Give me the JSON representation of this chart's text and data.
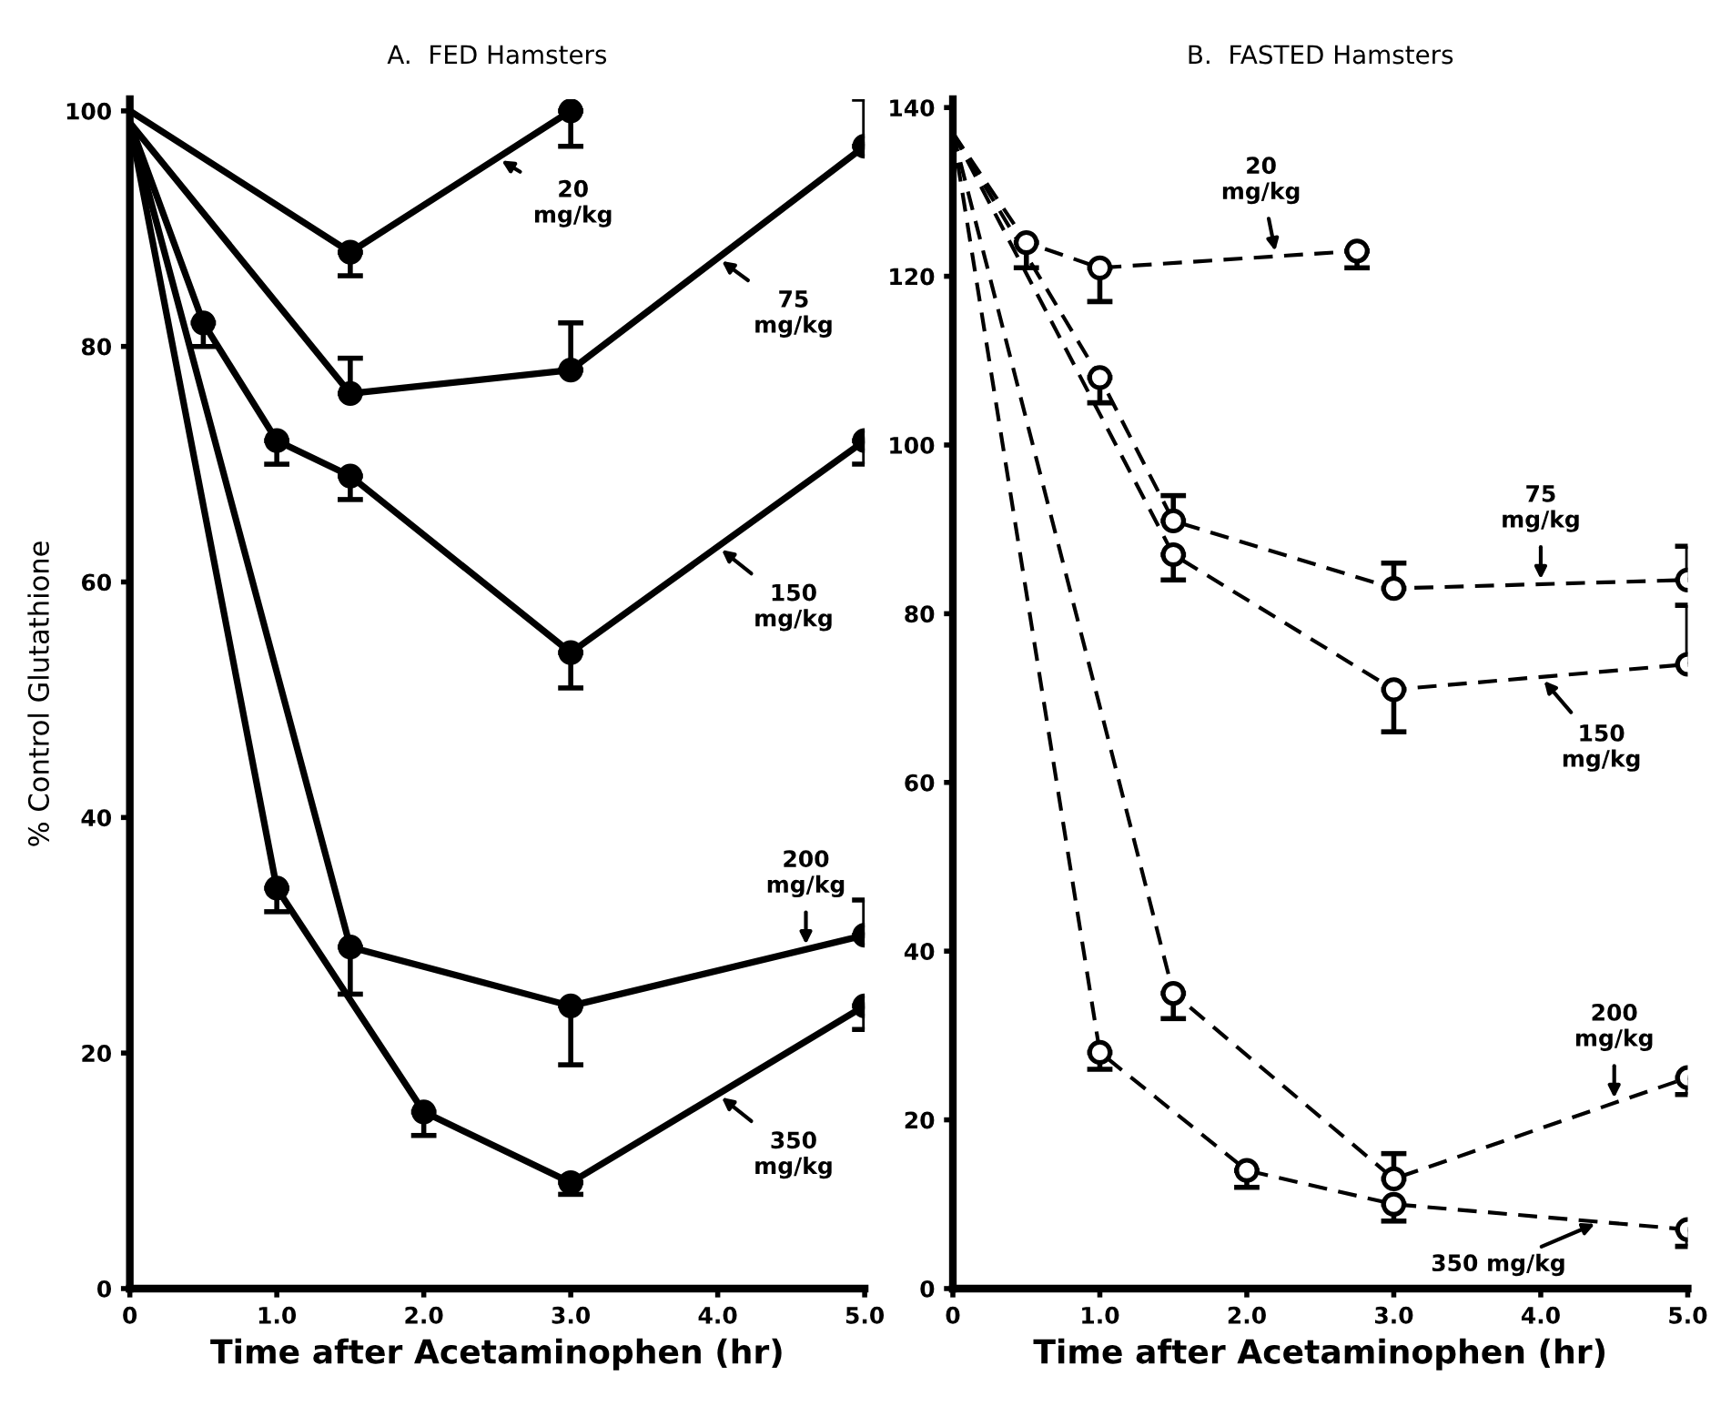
{
  "chart_data": [
    {
      "type": "line",
      "title": "A.  FED Hamsters",
      "xlabel": "Time after Acetaminophen (hr)",
      "ylabel": "% Control Glutathione",
      "xlim": [
        0,
        5.0
      ],
      "xticks": [
        0,
        {
          "value": 1,
          "label": "1.0"
        },
        {
          "value": 2,
          "label": "2.0"
        },
        {
          "value": 3,
          "label": "3.0"
        },
        {
          "value": 4,
          "label": "4.0"
        },
        {
          "value": 5,
          "label": "5.0"
        }
      ],
      "ylim": [
        0,
        101
      ],
      "yticks": [
        0,
        20,
        40,
        60,
        80,
        100
      ],
      "marker": "circle",
      "line_style": "solid",
      "grid": false,
      "legend": false,
      "series": [
        {
          "color": "#000000",
          "x": [
            0,
            1.5,
            3.0
          ],
          "values": [
            100,
            88,
            100
          ],
          "errors": [
            null,
            [
              86,
              88
            ],
            [
              97,
              100
            ]
          ]
        },
        {
          "color": "#000000",
          "x": [
            0,
            1.5,
            3.0,
            5.0
          ],
          "values": [
            99,
            76,
            78,
            97
          ],
          "errors": [
            null,
            [
              76,
              79
            ],
            [
              78,
              82
            ],
            [
              97,
              101
            ]
          ]
        },
        {
          "color": "#000000",
          "x": [
            0,
            0.5,
            1.0,
            1.5,
            3.0,
            5.0
          ],
          "values": [
            99,
            82,
            72,
            69,
            54,
            72
          ],
          "errors": [
            null,
            [
              80,
              82
            ],
            [
              70,
              72
            ],
            [
              67,
              69
            ],
            [
              51,
              54
            ],
            [
              70,
              72
            ]
          ]
        },
        {
          "color": "#000000",
          "x": [
            0,
            1.5,
            3.0,
            5.0
          ],
          "values": [
            99,
            29,
            24,
            30
          ],
          "errors": [
            null,
            [
              25,
              29
            ],
            [
              19,
              24
            ],
            [
              30,
              33
            ]
          ]
        },
        {
          "color": "#000000",
          "x": [
            0,
            1.0,
            2.0,
            3.0,
            5.0
          ],
          "values": [
            99,
            34,
            15,
            9,
            24
          ],
          "errors": [
            null,
            [
              32,
              34
            ],
            [
              13,
              15
            ],
            [
              8,
              9
            ],
            [
              22,
              24
            ]
          ]
        }
      ],
      "annotations": [
        {
          "text": "20\nmg/kg",
          "x": 2.5,
          "y": 96
        },
        {
          "text": "75\nmg/kg",
          "x": 4,
          "y": 87.5
        },
        {
          "text": "150\nmg/kg",
          "x": 4,
          "y": 63
        },
        {
          "text": "200\nmg/kg",
          "x": 4.6,
          "y": 28.8
        },
        {
          "text": "350\nmg/kg",
          "x": 4,
          "y": 16.5
        }
      ]
    },
    {
      "type": "line",
      "title": "B.  FASTED Hamsters",
      "xlabel": "Time after Acetaminophen (hr)",
      "xlim": [
        0,
        5.0
      ],
      "xticks": [
        0,
        {
          "value": 1,
          "label": "1.0"
        },
        {
          "value": 2,
          "label": "2.0"
        },
        {
          "value": 3,
          "label": "3.0"
        },
        {
          "value": 4,
          "label": "4.0"
        },
        {
          "value": 5,
          "label": "5.0"
        }
      ],
      "ylim": [
        0,
        141
      ],
      "yticks": [
        0,
        20,
        40,
        60,
        80,
        100,
        120,
        140
      ],
      "marker": "circle",
      "line_style": "dashed",
      "grid": false,
      "legend": false,
      "series": [
        {
          "color": "#000000",
          "x": [
            0,
            0.5,
            1.0,
            2.75
          ],
          "values": [
            137,
            124,
            121,
            123
          ],
          "errors": [
            null,
            [
              121,
              124
            ],
            [
              117,
              121
            ],
            [
              121,
              123
            ]
          ]
        },
        {
          "color": "#000000",
          "x": [
            0,
            1.0,
            1.5,
            3.0,
            5.0
          ],
          "values": [
            137,
            108,
            91,
            83,
            84
          ],
          "errors": [
            null,
            [
              105,
              108
            ],
            [
              91,
              94
            ],
            [
              83,
              86
            ],
            [
              84,
              88
            ]
          ]
        },
        {
          "color": "#000000",
          "x": [
            0,
            1.5,
            3.0,
            5.0
          ],
          "values": [
            137,
            87,
            71,
            74
          ],
          "errors": [
            null,
            [
              84,
              87
            ],
            [
              66,
              71
            ],
            [
              74,
              81
            ]
          ]
        },
        {
          "color": "#000000",
          "x": [
            0,
            1.5,
            3.0,
            5.0
          ],
          "values": [
            137,
            35,
            13,
            25
          ],
          "errors": [
            null,
            [
              32,
              35
            ],
            [
              13,
              16
            ],
            [
              23,
              25
            ]
          ]
        },
        {
          "color": "#000000",
          "x": [
            0,
            1.0,
            2.0,
            3.0,
            5.0
          ],
          "values": [
            137,
            28,
            14,
            10,
            7
          ],
          "errors": [
            null,
            [
              26,
              28
            ],
            [
              12,
              14
            ],
            [
              8,
              10
            ],
            [
              5,
              7
            ]
          ]
        }
      ],
      "annotations": [
        {
          "text": "20\nmg/kg",
          "x": 2.2,
          "y": 122.4
        },
        {
          "text": "75\nmg/kg",
          "x": 4,
          "y": 83.5
        },
        {
          "text": "150\nmg/kg",
          "x": 4,
          "y": 72.5
        },
        {
          "text": "200\nmg/kg",
          "x": 4.5,
          "y": 22
        },
        {
          "text": "350 mg/kg",
          "x": 4.4,
          "y": 7.9
        }
      ]
    }
  ]
}
